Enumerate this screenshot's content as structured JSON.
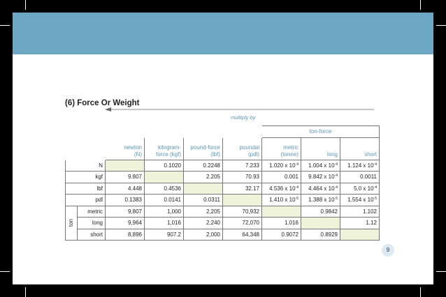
{
  "section_title": "(6) Force Or Weight",
  "multiply_label": "multiply by",
  "group_header": "ton-force",
  "column_headers": [
    [
      "newton",
      "(N)"
    ],
    [
      "kilogram-",
      "force (kgf)"
    ],
    [
      "pound-force",
      "(lbf)"
    ],
    [
      "poundal",
      "(pdl)"
    ],
    [
      "metric",
      "(tonne)"
    ],
    [
      "long",
      ""
    ],
    [
      "short",
      ""
    ]
  ],
  "ton_label": "ton",
  "rows": [
    {
      "unit": "N",
      "cells": [
        "",
        "0.1020",
        "0.2248",
        "7.233",
        [
          "1.020 x 10",
          "-4"
        ],
        [
          "1.004 x 10",
          "-4"
        ],
        [
          "1.124 x 10",
          "-4"
        ]
      ],
      "shade": 0
    },
    {
      "unit": "kgf",
      "cells": [
        "9.807",
        "",
        "2.205",
        "70.93",
        "0.001",
        [
          "9.842 x 10",
          "-4"
        ],
        "0.0011"
      ],
      "shade": 1
    },
    {
      "unit": "lbf",
      "cells": [
        "4.448",
        "0.4536",
        "",
        "32.17",
        [
          "4.536 x 10",
          "-4"
        ],
        [
          "4.464 x 10",
          "-4"
        ],
        [
          "5.0 x 10",
          "-4"
        ]
      ],
      "shade": 2
    },
    {
      "unit": "pdl",
      "cells": [
        "0.1383",
        "0.0141",
        "0.0311",
        "",
        [
          "1.410 x 10",
          "-5"
        ],
        [
          "1.388 x 10",
          "-5"
        ],
        [
          "1.554 x 10",
          "-5"
        ]
      ],
      "shade": 3
    },
    {
      "unit": "metric",
      "cells": [
        "9,807",
        "1,000",
        "2,205",
        "70,932",
        "",
        "0.9842",
        "1.102"
      ],
      "shade": 4
    },
    {
      "unit": "long",
      "cells": [
        "9,964",
        "1,016",
        "2,240",
        "72,070",
        "1.016",
        "",
        "1.12"
      ],
      "shade": 5
    },
    {
      "unit": "short",
      "cells": [
        "8,896",
        "907.2",
        "2,000",
        "64,348",
        "0.9072",
        "0.8929",
        ""
      ],
      "shade": 6
    }
  ],
  "page_number": "9",
  "colors": {
    "banner": "#6da7c3",
    "accent": "#5b95b5",
    "shade": "#eef3d9"
  }
}
